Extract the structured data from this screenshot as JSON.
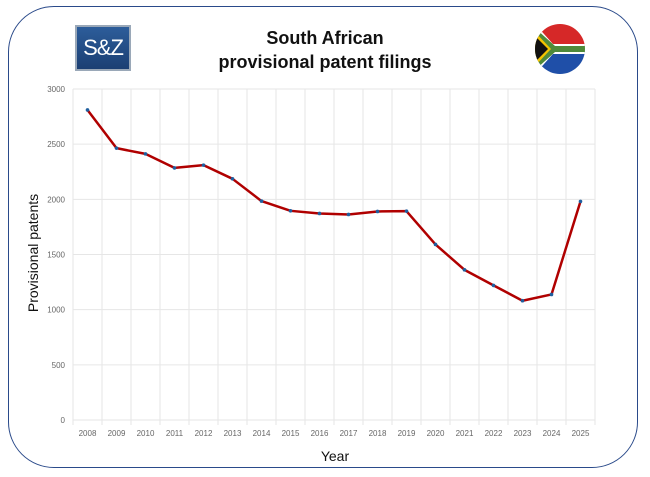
{
  "logo_text": "S&Z",
  "chart_data": {
    "type": "line",
    "title": "South African provisional patent filings",
    "title_lines": [
      "South African",
      "provisional patent filings"
    ],
    "xlabel": "Year",
    "ylabel": "Provisional patents",
    "categories": [
      "2008",
      "2009",
      "2010",
      "2011",
      "2012",
      "2013",
      "2014",
      "2015",
      "2016",
      "2017",
      "2018",
      "2019",
      "2020",
      "2021",
      "2022",
      "2023",
      "2024",
      "2025"
    ],
    "values": [
      2810,
      2464,
      2412,
      2285,
      2310,
      2186,
      1984,
      1896,
      1872,
      1863,
      1890,
      1893,
      1591,
      1361,
      1220,
      1081,
      1138,
      1981
    ],
    "ylim": [
      0,
      3000
    ],
    "yticks": [
      "0",
      "500",
      "1000",
      "1500",
      "2000",
      "2500",
      "3000"
    ],
    "grid": true,
    "line_color": "#b00000",
    "marker_color": "#1f5f9f"
  }
}
